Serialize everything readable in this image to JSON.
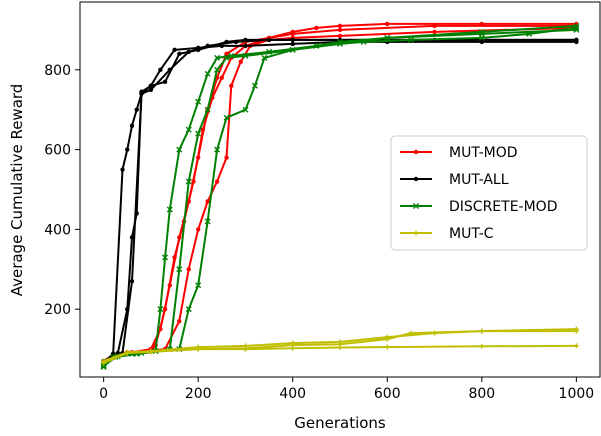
{
  "chart_data": {
    "type": "line",
    "xlabel": "Generations",
    "ylabel": "Average Cumulative Reward",
    "xlim": [
      -50,
      1050
    ],
    "ylim": [
      30,
      970
    ],
    "xticks": [
      0,
      200,
      400,
      600,
      800,
      1000
    ],
    "yticks": [
      200,
      400,
      600,
      800
    ],
    "grid": false,
    "legend_position": "right",
    "series": [
      {
        "name": "MUT-MOD",
        "color": "#ff0000",
        "marker": "dot",
        "runs": [
          [
            [
              0,
              70
            ],
            [
              20,
              85
            ],
            [
              50,
              92
            ],
            [
              100,
              95
            ],
            [
              110,
              110
            ],
            [
              130,
              200
            ],
            [
              150,
              330
            ],
            [
              170,
              420
            ],
            [
              190,
              520
            ],
            [
              210,
              650
            ],
            [
              230,
              730
            ],
            [
              250,
              780
            ],
            [
              270,
              830
            ],
            [
              300,
              860
            ],
            [
              350,
              880
            ],
            [
              400,
              895
            ],
            [
              450,
              905
            ],
            [
              500,
              910
            ],
            [
              600,
              915
            ],
            [
              800,
              915
            ],
            [
              1000,
              915
            ]
          ],
          [
            [
              0,
              65
            ],
            [
              20,
              82
            ],
            [
              50,
              90
            ],
            [
              100,
              100
            ],
            [
              120,
              150
            ],
            [
              140,
              260
            ],
            [
              160,
              380
            ],
            [
              180,
              470
            ],
            [
              200,
              580
            ],
            [
              220,
              700
            ],
            [
              240,
              780
            ],
            [
              260,
              840
            ],
            [
              300,
              870
            ],
            [
              350,
              880
            ],
            [
              400,
              890
            ],
            [
              500,
              900
            ],
            [
              700,
              910
            ],
            [
              1000,
              910
            ]
          ],
          [
            [
              0,
              68
            ],
            [
              30,
              85
            ],
            [
              60,
              92
            ],
            [
              130,
              100
            ],
            [
              160,
              170
            ],
            [
              180,
              300
            ],
            [
              200,
              400
            ],
            [
              220,
              470
            ],
            [
              240,
              520
            ],
            [
              260,
              580
            ],
            [
              270,
              760
            ],
            [
              290,
              820
            ],
            [
              310,
              860
            ],
            [
              350,
              875
            ],
            [
              400,
              880
            ],
            [
              500,
              885
            ],
            [
              700,
              895
            ],
            [
              1000,
              905
            ]
          ]
        ]
      },
      {
        "name": "MUT-ALL",
        "color": "#000000",
        "marker": "dot",
        "runs": [
          [
            [
              0,
              60
            ],
            [
              20,
              85
            ],
            [
              40,
              550
            ],
            [
              50,
              600
            ],
            [
              60,
              660
            ],
            [
              70,
              700
            ],
            [
              80,
              740
            ],
            [
              100,
              760
            ],
            [
              120,
              800
            ],
            [
              150,
              850
            ],
            [
              200,
              855
            ],
            [
              250,
              860
            ],
            [
              300,
              860
            ],
            [
              400,
              865
            ],
            [
              500,
              870
            ],
            [
              600,
              870
            ],
            [
              800,
              870
            ],
            [
              1000,
              870
            ]
          ],
          [
            [
              0,
              70
            ],
            [
              30,
              90
            ],
            [
              50,
              200
            ],
            [
              60,
              380
            ],
            [
              70,
              440
            ],
            [
              80,
              745
            ],
            [
              100,
              760
            ],
            [
              130,
              770
            ],
            [
              160,
              840
            ],
            [
              200,
              850
            ],
            [
              260,
              870
            ],
            [
              300,
              875
            ],
            [
              400,
              875
            ],
            [
              600,
              875
            ],
            [
              800,
              875
            ],
            [
              1000,
              875
            ]
          ],
          [
            [
              0,
              65
            ],
            [
              20,
              88
            ],
            [
              40,
              90
            ],
            [
              60,
              270
            ],
            [
              80,
              740
            ],
            [
              100,
              750
            ],
            [
              140,
              800
            ],
            [
              180,
              845
            ],
            [
              220,
              860
            ],
            [
              280,
              870
            ],
            [
              350,
              875
            ],
            [
              500,
              875
            ],
            [
              700,
              875
            ],
            [
              1000,
              875
            ]
          ]
        ]
      },
      {
        "name": "DISCRETE-MOD",
        "color": "#008000",
        "marker": "x",
        "runs": [
          [
            [
              0,
              55
            ],
            [
              20,
              80
            ],
            [
              60,
              88
            ],
            [
              110,
              95
            ],
            [
              120,
              200
            ],
            [
              130,
              330
            ],
            [
              140,
              450
            ],
            [
              160,
              600
            ],
            [
              180,
              650
            ],
            [
              200,
              720
            ],
            [
              220,
              790
            ],
            [
              240,
              830
            ],
            [
              270,
              835
            ],
            [
              350,
              845
            ],
            [
              450,
              860
            ],
            [
              550,
              870
            ],
            [
              650,
              875
            ],
            [
              800,
              880
            ],
            [
              900,
              890
            ],
            [
              1000,
              905
            ]
          ],
          [
            [
              0,
              60
            ],
            [
              30,
              82
            ],
            [
              80,
              90
            ],
            [
              140,
              100
            ],
            [
              160,
              300
            ],
            [
              180,
              520
            ],
            [
              200,
              640
            ],
            [
              220,
              700
            ],
            [
              240,
              800
            ],
            [
              260,
              830
            ],
            [
              300,
              835
            ],
            [
              400,
              850
            ],
            [
              500,
              870
            ],
            [
              600,
              880
            ],
            [
              800,
              890
            ],
            [
              1000,
              900
            ]
          ],
          [
            [
              0,
              58
            ],
            [
              25,
              80
            ],
            [
              70,
              88
            ],
            [
              160,
              100
            ],
            [
              180,
              200
            ],
            [
              200,
              260
            ],
            [
              220,
              420
            ],
            [
              240,
              600
            ],
            [
              260,
              680
            ],
            [
              300,
              700
            ],
            [
              320,
              760
            ],
            [
              340,
              830
            ],
            [
              400,
              850
            ],
            [
              500,
              865
            ],
            [
              600,
              880
            ],
            [
              800,
              895
            ],
            [
              1000,
              910
            ]
          ]
        ]
      },
      {
        "name": "MUT-C",
        "color": "#bfbf00",
        "marker": "plus",
        "runs": [
          [
            [
              0,
              65
            ],
            [
              50,
              90
            ],
            [
              100,
              95
            ],
            [
              200,
              100
            ],
            [
              300,
              100
            ],
            [
              400,
              102
            ],
            [
              500,
              104
            ],
            [
              600,
              105
            ],
            [
              800,
              107
            ],
            [
              1000,
              108
            ]
          ],
          [
            [
              0,
              70
            ],
            [
              50,
              92
            ],
            [
              100,
              95
            ],
            [
              200,
              105
            ],
            [
              300,
              108
            ],
            [
              400,
              115
            ],
            [
              500,
              118
            ],
            [
              600,
              130
            ],
            [
              700,
              140
            ],
            [
              800,
              145
            ],
            [
              1000,
              150
            ]
          ],
          [
            [
              0,
              68
            ],
            [
              50,
              90
            ],
            [
              100,
              93
            ],
            [
              200,
              100
            ],
            [
              300,
              102
            ],
            [
              400,
              110
            ],
            [
              500,
              112
            ],
            [
              600,
              125
            ],
            [
              650,
              140
            ],
            [
              800,
              145
            ],
            [
              1000,
              145
            ]
          ]
        ]
      }
    ]
  }
}
